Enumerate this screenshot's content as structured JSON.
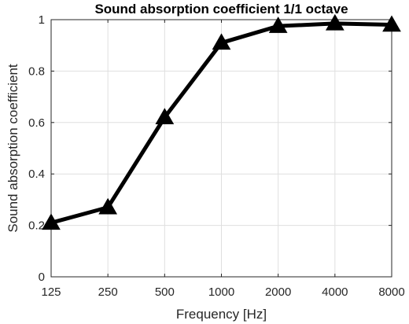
{
  "chart_data": {
    "type": "line",
    "title": "Sound absorption coefficient 1/1 octave",
    "xlabel": "Frequency [Hz]",
    "ylabel": "Sound absorption coefficient",
    "categories": [
      "125",
      "250",
      "500",
      "1000",
      "2000",
      "4000",
      "8000"
    ],
    "x": [
      125,
      250,
      500,
      1000,
      2000,
      4000,
      8000
    ],
    "x_scale": "log",
    "series": [
      {
        "values": [
          0.21,
          0.27,
          0.62,
          0.91,
          0.975,
          0.985,
          0.98
        ]
      }
    ],
    "ylim": [
      0,
      1
    ],
    "yticks": [
      "0",
      "0.2",
      "0.4",
      "0.6",
      "0.8",
      "1"
    ],
    "ytick_values": [
      0,
      0.2,
      0.4,
      0.6,
      0.8,
      1
    ],
    "grid": true,
    "marker": "triangle",
    "line_color": "#000000"
  }
}
